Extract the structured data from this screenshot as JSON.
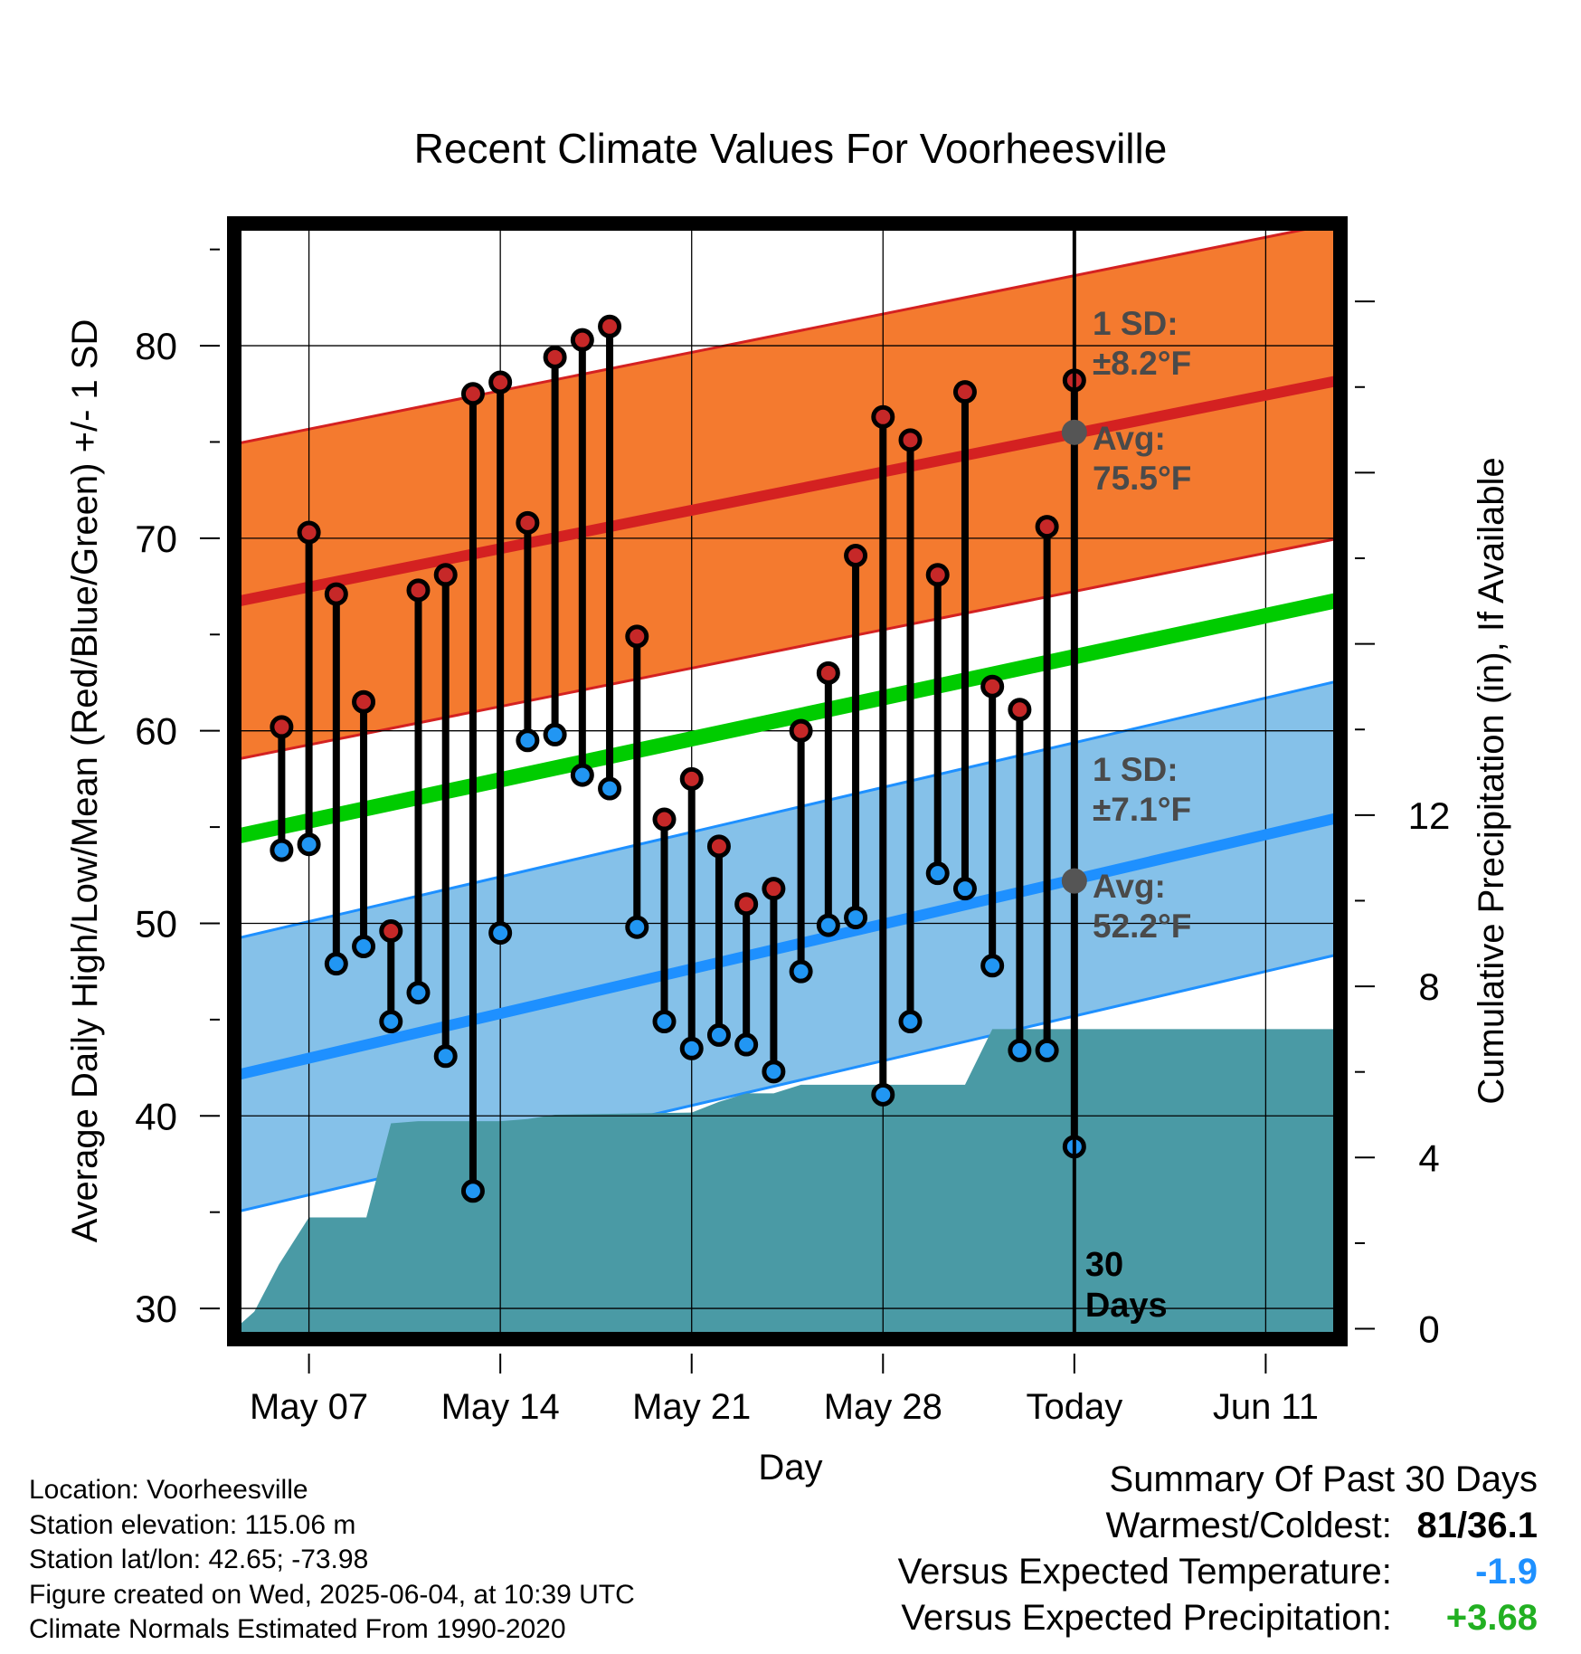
{
  "chart_data": {
    "type": "line",
    "title": "Recent Climate Values For Voorheesville",
    "xlabel": "Day",
    "ylabel": "Average Daily High/Low/Mean (Red/Blue/Green) +/- 1 SD",
    "y2label": "Cumulative Precipitation (in), If Available",
    "x_ticks": [
      {
        "day": 7,
        "label": "May 07"
      },
      {
        "day": 14,
        "label": "May 14"
      },
      {
        "day": 21,
        "label": "May 21"
      },
      {
        "day": 28,
        "label": "May 28"
      },
      {
        "day": 35,
        "label": "Today"
      },
      {
        "day": 42,
        "label": "Jun 11"
      }
    ],
    "xlim": [
      4.3,
      44.7
    ],
    "ylim": [
      28.5,
      86.3
    ],
    "y_ticks": [
      "30",
      "40",
      "50",
      "60",
      "70",
      "80"
    ],
    "y2lim": [
      -0.2,
      25.8
    ],
    "y2_ticks": [
      "0",
      "4",
      "8",
      "12"
    ],
    "grid": true,
    "today_day": 35,
    "today_marker_label": [
      "30",
      "Days"
    ],
    "normals": {
      "high_avg_range": [
        66.7,
        78.2
      ],
      "high_sd": 8.2,
      "low_avg_range": [
        42.1,
        55.5
      ],
      "low_sd": 7.1,
      "mean_range": [
        54.5,
        66.8
      ]
    },
    "avg_dots": [
      {
        "day": 35,
        "value": 75.5,
        "series": "high"
      },
      {
        "day": 35,
        "value": 52.2,
        "series": "low"
      }
    ],
    "annotations": {
      "high_sd": [
        "1 SD:",
        "±8.2°F"
      ],
      "high_avg": [
        "Avg:",
        "75.5°F"
      ],
      "low_sd": [
        "1 SD:",
        "±7.1°F"
      ],
      "low_avg": [
        "Avg:",
        "52.2°F"
      ]
    },
    "daily": [
      {
        "day": 6,
        "high": 60.2,
        "low": 53.8
      },
      {
        "day": 7,
        "high": 70.3,
        "low": 54.1
      },
      {
        "day": 8,
        "high": 67.1,
        "low": 47.9
      },
      {
        "day": 9,
        "high": 61.5,
        "low": 48.8
      },
      {
        "day": 10,
        "high": 49.6,
        "low": 44.9
      },
      {
        "day": 11,
        "high": 67.3,
        "low": 46.4
      },
      {
        "day": 12,
        "high": 68.1,
        "low": 43.1
      },
      {
        "day": 13,
        "high": 77.5,
        "low": 36.1
      },
      {
        "day": 14,
        "high": 78.1,
        "low": 49.5
      },
      {
        "day": 15,
        "high": 70.8,
        "low": 59.5
      },
      {
        "day": 16,
        "high": 79.4,
        "low": 59.8
      },
      {
        "day": 17,
        "high": 80.3,
        "low": 57.7
      },
      {
        "day": 18,
        "high": 81.0,
        "low": 57.0
      },
      {
        "day": 19,
        "high": 64.9,
        "low": 49.8
      },
      {
        "day": 20,
        "high": 55.4,
        "low": 44.9
      },
      {
        "day": 21,
        "high": 57.5,
        "low": 43.5
      },
      {
        "day": 22,
        "high": 54.0,
        "low": 44.2
      },
      {
        "day": 23,
        "high": 51.0,
        "low": 43.7
      },
      {
        "day": 24,
        "high": 51.8,
        "low": 42.3
      },
      {
        "day": 25,
        "high": 60.0,
        "low": 47.5
      },
      {
        "day": 26,
        "high": 63.0,
        "low": 49.9
      },
      {
        "day": 27,
        "high": 69.1,
        "low": 50.3
      },
      {
        "day": 28,
        "high": 76.3,
        "low": 41.1
      },
      {
        "day": 29,
        "high": 75.1,
        "low": 44.9
      },
      {
        "day": 30,
        "high": 68.1,
        "low": 52.6
      },
      {
        "day": 31,
        "high": 77.6,
        "low": 51.8
      },
      {
        "day": 32,
        "high": 62.3,
        "low": 47.8
      },
      {
        "day": 33,
        "high": 61.1,
        "low": 43.4
      },
      {
        "day": 34,
        "high": 70.6,
        "low": 43.4
      },
      {
        "day": 35,
        "high": 78.2,
        "low": 38.4
      }
    ],
    "precip_cumulative": [
      {
        "day": 4.3,
        "value": 0.0
      },
      {
        "day": 5,
        "value": 0.4
      },
      {
        "day": 5.9,
        "value": 1.5
      },
      {
        "day": 6.4,
        "value": 2.0
      },
      {
        "day": 7.0,
        "value": 2.6
      },
      {
        "day": 8.1,
        "value": 2.6
      },
      {
        "day": 9.1,
        "value": 2.6
      },
      {
        "day": 10,
        "value": 4.8
      },
      {
        "day": 11,
        "value": 4.85
      },
      {
        "day": 14,
        "value": 4.85
      },
      {
        "day": 15,
        "value": 4.9
      },
      {
        "day": 16,
        "value": 5.0
      },
      {
        "day": 21,
        "value": 5.05
      },
      {
        "day": 22,
        "value": 5.3
      },
      {
        "day": 23,
        "value": 5.5
      },
      {
        "day": 24,
        "value": 5.5
      },
      {
        "day": 25,
        "value": 5.7
      },
      {
        "day": 31,
        "value": 5.7
      },
      {
        "day": 32,
        "value": 7.0
      },
      {
        "day": 44.7,
        "value": 7.0
      }
    ]
  },
  "info": {
    "location": "Location: Voorheesville",
    "elevation": "Station elevation: 115.06 m",
    "latlon": "Station lat/lon: 42.65; -73.98",
    "created": "Figure created on Wed, 2025-06-04, at 10:39 UTC",
    "normals": "Climate Normals Estimated From 1990-2020"
  },
  "summary": {
    "title": "Summary Of Past 30 Days",
    "warmest_label": "Warmest/Coldest:",
    "warmest_value": "81/36.1",
    "temp_label": "Versus Expected Temperature:",
    "temp_value": "-1.9",
    "precip_label": "Versus Expected Precipitation:",
    "precip_value": "+3.68"
  },
  "colors": {
    "high_band": "#f47a2f",
    "high_line": "#d42121",
    "low_band": "#85c1e9",
    "low_line": "#1e90ff",
    "mean_line": "#00cc00",
    "precip_fill": "#4a9aa5",
    "high_dot": "#c62828",
    "low_dot": "#2196f3",
    "avg_dot": "#555555",
    "annotation_text": "#4a4a4a",
    "temp_value": "#1e90ff",
    "precip_value": "#22b022"
  }
}
